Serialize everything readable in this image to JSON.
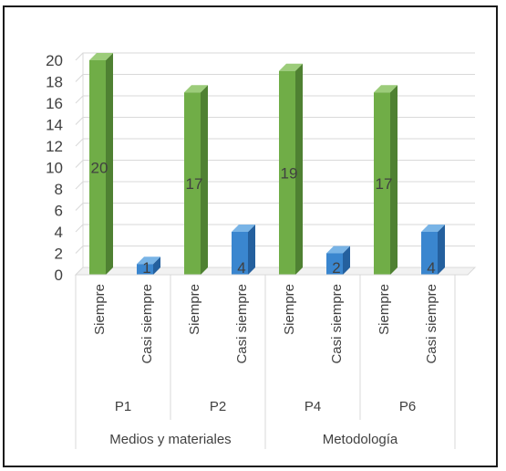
{
  "chart_data": {
    "type": "bar",
    "three_d": true,
    "title": "",
    "xlabel": "",
    "ylabel": "",
    "ylim": [
      0,
      20
    ],
    "yticks": [
      0,
      2,
      4,
      6,
      8,
      10,
      12,
      14,
      16,
      18,
      20
    ],
    "grid": true,
    "legend": "none",
    "groups": [
      {
        "label": "Medios y materiales",
        "subgroups": [
          {
            "label": "P1",
            "bars": [
              {
                "category": "Siempre",
                "value": 20,
                "label": "20",
                "color": "green"
              },
              {
                "category": "Casi siempre",
                "value": 1,
                "label": "1",
                "color": "blue"
              }
            ]
          },
          {
            "label": "P2",
            "bars": [
              {
                "category": "Siempre",
                "value": 17,
                "label": "17",
                "color": "green"
              },
              {
                "category": "Casi siempre",
                "value": 4,
                "label": "4",
                "color": "blue"
              }
            ]
          }
        ]
      },
      {
        "label": "Metodología",
        "subgroups": [
          {
            "label": "P4",
            "bars": [
              {
                "category": "Siempre",
                "value": 19,
                "label": "19",
                "color": "green"
              },
              {
                "category": "Casi siempre",
                "value": 2,
                "label": "2",
                "color": "blue"
              }
            ]
          },
          {
            "label": "P6",
            "bars": [
              {
                "category": "Siempre",
                "value": 17,
                "label": "17",
                "color": "green"
              },
              {
                "category": "Casi siempre",
                "value": 4,
                "label": "4",
                "color": "blue"
              }
            ]
          }
        ]
      }
    ]
  },
  "colors": {
    "green": {
      "front": "#70ad47",
      "side": "#4f8132",
      "top": "#9ccc7a"
    },
    "blue": {
      "front": "#3a86cf",
      "side": "#24609e",
      "top": "#79b4e6"
    },
    "grid": "#d9d9d9",
    "axis_text": "#404040",
    "label_text": "#404040"
  }
}
